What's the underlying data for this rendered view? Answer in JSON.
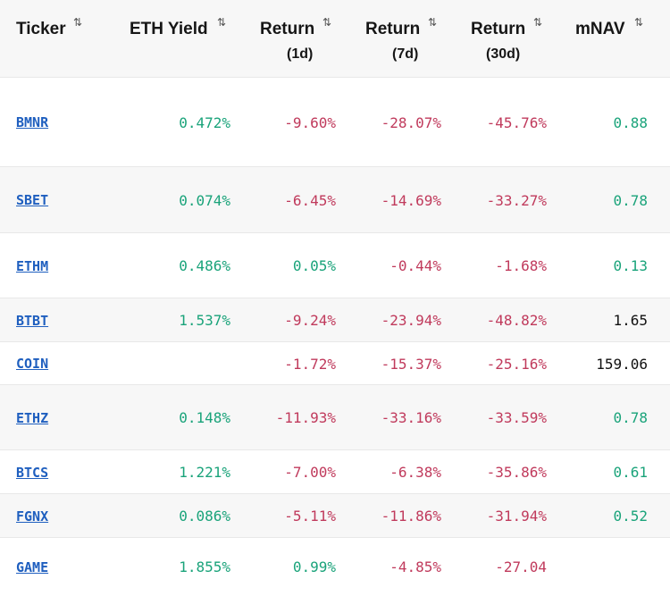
{
  "columns": [
    {
      "label": "Ticker",
      "sub": ""
    },
    {
      "label": "ETH Yield",
      "sub": ""
    },
    {
      "label": "Return",
      "sub": "(1d)"
    },
    {
      "label": "Return",
      "sub": "(7d)"
    },
    {
      "label": "Return",
      "sub": "(30d)"
    },
    {
      "label": "mNAV",
      "sub": ""
    }
  ],
  "sort_icon": "⇅",
  "colors": {
    "positive": "#1aa37a",
    "negative": "#c03a5c",
    "neutral": "#111111",
    "link": "#1f5fbf",
    "header_bg": "#f7f7f7"
  },
  "rows": [
    {
      "ticker": "BMNR",
      "eth_yield": "0.472%",
      "ret_1d": "-9.60%",
      "ret_7d": "-28.07%",
      "ret_30d": "-45.76%",
      "mnav": "0.88",
      "mnav_tone": "pos"
    },
    {
      "ticker": "SBET",
      "eth_yield": "0.074%",
      "ret_1d": "-6.45%",
      "ret_7d": "-14.69%",
      "ret_30d": "-33.27%",
      "mnav": "0.78",
      "mnav_tone": "pos"
    },
    {
      "ticker": "ETHM",
      "eth_yield": "0.486%",
      "ret_1d": "0.05%",
      "ret_7d": "-0.44%",
      "ret_30d": "-1.68%",
      "mnav": "0.13",
      "mnav_tone": "pos"
    },
    {
      "ticker": "BTBT",
      "eth_yield": "1.537%",
      "ret_1d": "-9.24%",
      "ret_7d": "-23.94%",
      "ret_30d": "-48.82%",
      "mnav": "1.65",
      "mnav_tone": "neutral"
    },
    {
      "ticker": "COIN",
      "eth_yield": "",
      "ret_1d": "-1.72%",
      "ret_7d": "-15.37%",
      "ret_30d": "-25.16%",
      "mnav": "159.06",
      "mnav_tone": "neutral"
    },
    {
      "ticker": "ETHZ",
      "eth_yield": "0.148%",
      "ret_1d": "-11.93%",
      "ret_7d": "-33.16%",
      "ret_30d": "-33.59%",
      "mnav": "0.78",
      "mnav_tone": "pos"
    },
    {
      "ticker": "BTCS",
      "eth_yield": "1.221%",
      "ret_1d": "-7.00%",
      "ret_7d": "-6.38%",
      "ret_30d": "-35.86%",
      "mnav": "0.61",
      "mnav_tone": "pos"
    },
    {
      "ticker": "FGNX",
      "eth_yield": "0.086%",
      "ret_1d": "-5.11%",
      "ret_7d": "-11.86%",
      "ret_30d": "-31.94%",
      "mnav": "0.52",
      "mnav_tone": "pos"
    },
    {
      "ticker": "GAME",
      "eth_yield": "1.855%",
      "ret_1d": "0.99%",
      "ret_7d": "-4.85%",
      "ret_30d": "-27.04",
      "mnav": "",
      "mnav_tone": "pos"
    }
  ]
}
